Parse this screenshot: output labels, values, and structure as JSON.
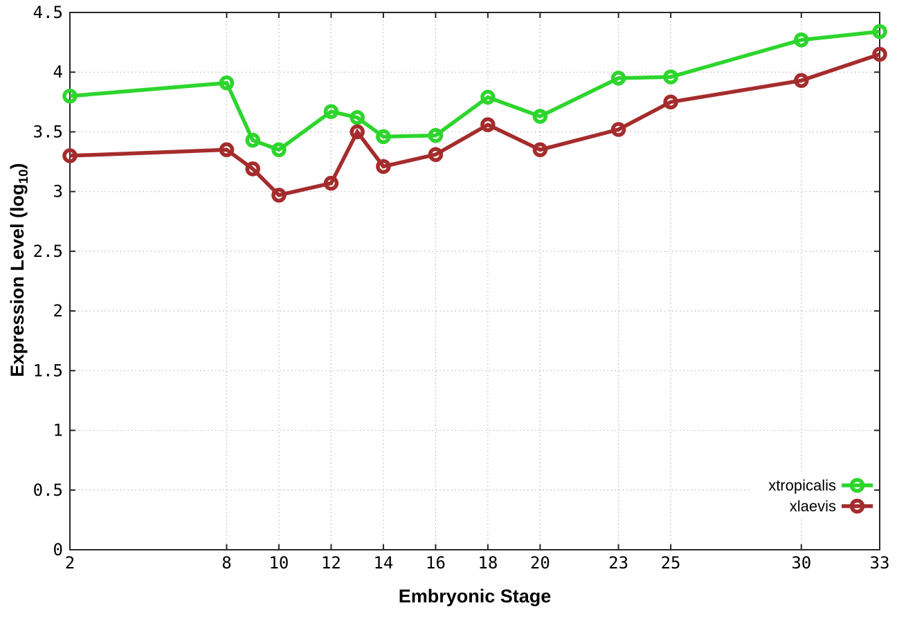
{
  "figure": {
    "background": "#ffffff"
  },
  "chart_data": {
    "type": "line",
    "title": "",
    "xlabel": "Embryonic Stage",
    "ylabel": "Expression Level (log10)",
    "ylabel_parts": {
      "prefix": "Expression Level (log",
      "sub": "10",
      "suffix": ")"
    },
    "x": [
      2,
      8,
      9,
      10,
      12,
      13,
      14,
      16,
      18,
      20,
      23,
      25,
      30,
      33
    ],
    "series": [
      {
        "name": "xtropicalis",
        "color": "#2dd52d",
        "values": [
          3.8,
          3.91,
          3.43,
          3.35,
          3.67,
          3.62,
          3.46,
          3.47,
          3.79,
          3.63,
          3.95,
          3.96,
          4.27,
          4.34
        ]
      },
      {
        "name": "xlaevis",
        "color": "#a52c2c",
        "values": [
          3.3,
          3.35,
          3.19,
          2.97,
          3.07,
          3.5,
          3.21,
          3.31,
          3.56,
          3.35,
          3.52,
          3.75,
          3.93,
          4.15
        ]
      }
    ],
    "xlim": [
      2,
      33
    ],
    "ylim": [
      0,
      4.5
    ],
    "xticks": [
      2,
      8,
      10,
      12,
      14,
      16,
      18,
      20,
      23,
      25,
      30,
      33
    ],
    "xtick_labels": [
      "2",
      "8",
      "10",
      "12",
      "14",
      "16",
      "18",
      "20",
      "23",
      "25",
      "30",
      "33"
    ],
    "yticks": [
      0,
      0.5,
      1,
      1.5,
      2,
      2.5,
      3,
      3.5,
      4,
      4.5
    ],
    "ytick_labels": [
      "0",
      "0.5",
      "1",
      "1.5",
      "2",
      "2.5",
      "3",
      "3.5",
      "4",
      "4.5"
    ],
    "grid": true,
    "grid_style": "dotted",
    "legend_position": "bottom-right",
    "legend_opaque": true,
    "marker": "open-circle",
    "axis_color": "#262626",
    "grid_color": "#b5b5b5",
    "text_color": "#000000"
  }
}
